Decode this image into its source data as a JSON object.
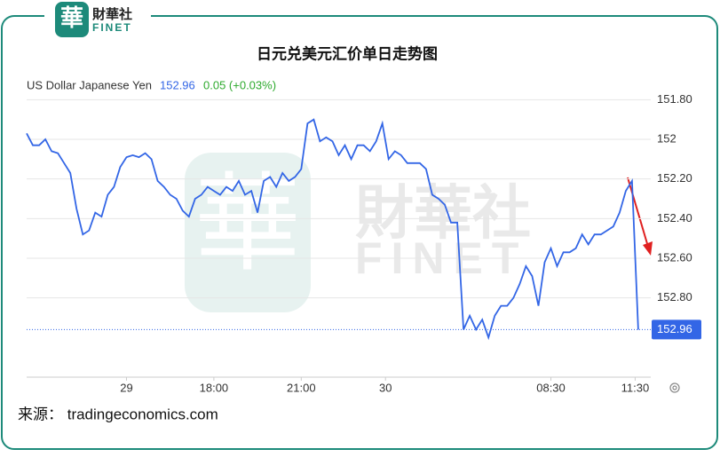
{
  "brand": {
    "mark": "華",
    "name": "財華社",
    "latin": "FINET"
  },
  "chart_data": {
    "type": "line",
    "title": "日元兑美元汇价单日走势图",
    "header": {
      "name": "US Dollar Japanese Yen",
      "change": "0.05 (+0.03%)"
    },
    "source": "来源： tradingeconomics.com",
    "series": [
      {
        "name": "US Dollar Japanese Yen",
        "color": "#3366e6",
        "values": [
          151.97,
          152.03,
          152.03,
          152.0,
          152.06,
          152.07,
          152.12,
          152.17,
          152.35,
          152.48,
          152.46,
          152.37,
          152.39,
          152.28,
          152.24,
          152.14,
          152.09,
          152.08,
          152.09,
          152.07,
          152.1,
          152.21,
          152.24,
          152.28,
          152.3,
          152.36,
          152.39,
          152.3,
          152.28,
          152.24,
          152.26,
          152.28,
          152.24,
          152.26,
          152.21,
          152.28,
          152.26,
          152.37,
          152.21,
          152.19,
          152.24,
          152.17,
          152.21,
          152.19,
          152.15,
          151.92,
          151.9,
          152.01,
          151.99,
          152.01,
          152.08,
          152.03,
          152.1,
          152.03,
          152.03,
          152.06,
          152.01,
          151.92,
          152.1,
          152.06,
          152.08,
          152.12,
          152.12,
          152.12,
          152.15,
          152.28,
          152.3,
          152.33,
          152.42,
          152.42,
          152.96,
          152.89,
          152.96,
          152.91,
          153.0,
          152.89,
          152.84,
          152.84,
          152.8,
          152.73,
          152.64,
          152.69,
          152.84,
          152.62,
          152.55,
          152.64,
          152.57,
          152.57,
          152.55,
          152.48,
          152.53,
          152.48,
          152.48,
          152.46,
          152.44,
          152.37,
          152.26,
          152.21,
          152.96
        ]
      }
    ],
    "ylim": [
      151.7,
      153.2
    ],
    "inverted": true,
    "yticks": [
      {
        "value": 151.8,
        "label": "151.80"
      },
      152,
      {
        "value": 152.2,
        "label": "152.20"
      },
      {
        "value": 152.4,
        "label": "152.40"
      },
      {
        "value": 152.6,
        "label": "152.60"
      },
      {
        "value": 152.8,
        "label": "152.80"
      }
    ],
    "xlim": [
      0,
      100
    ],
    "xticks": [
      {
        "value": 16,
        "label": "29"
      },
      {
        "value": 30,
        "label": "18:00"
      },
      {
        "value": 44,
        "label": "21:00"
      },
      {
        "value": 57.5,
        "label": "30"
      },
      {
        "value": 84,
        "label": "08:30"
      },
      {
        "value": 97.5,
        "label": "11:30"
      }
    ],
    "grid": true
  }
}
